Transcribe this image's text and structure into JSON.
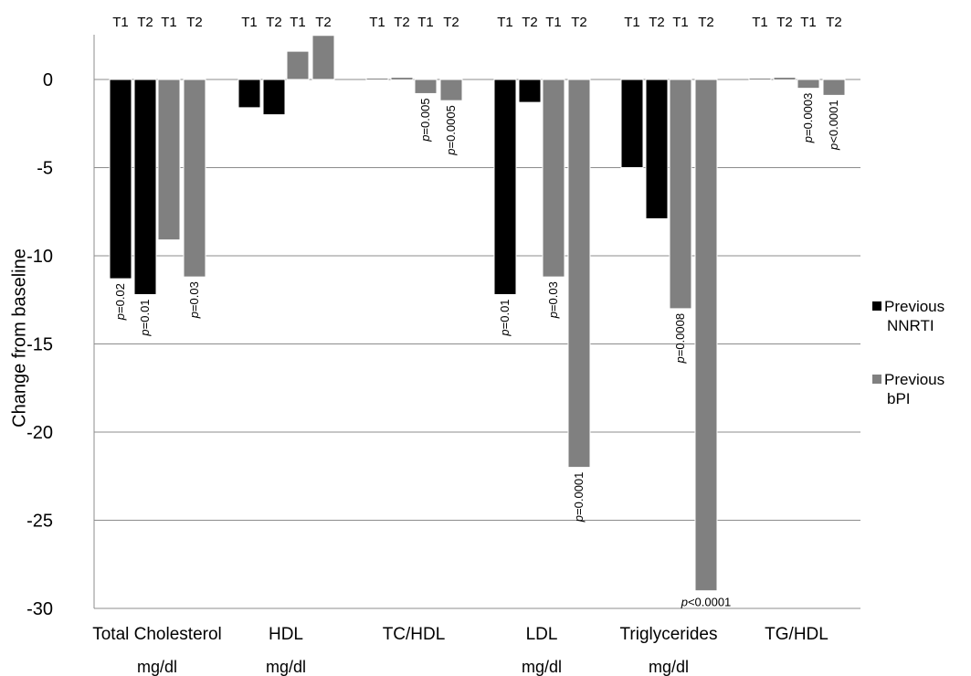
{
  "chart_data": {
    "type": "bar",
    "ylabel": "Change from baseline",
    "ylim": [
      -30,
      2.5
    ],
    "yticks": [
      0,
      -5,
      -10,
      -15,
      -20,
      -25,
      -30
    ],
    "ytick_labels": [
      "0",
      "-5",
      "-10",
      "-15",
      "-20",
      "-25",
      "-30"
    ],
    "grid": true,
    "legend_position": "right",
    "bar_labels": [
      "T1",
      "T2",
      "T1",
      "T2"
    ],
    "categories": [
      {
        "name": "Total Cholesterol",
        "unit": "mg/dl"
      },
      {
        "name": "HDL",
        "unit": "mg/dl"
      },
      {
        "name": "TC/HDL",
        "unit": ""
      },
      {
        "name": "LDL",
        "unit": "mg/dl"
      },
      {
        "name": "Triglycerides",
        "unit": "mg/dl"
      },
      {
        "name": "TG/HDL",
        "unit": ""
      }
    ],
    "series": [
      {
        "name": "Previous NNRTI",
        "legend_lines": [
          "Previous",
          "NNRTI"
        ],
        "color": "#000000",
        "T1": [
          -11.3,
          -1.6,
          0.05,
          -12.2,
          -5.0,
          0.05
        ],
        "T2": [
          -12.2,
          -2.0,
          0.1,
          -1.3,
          -7.9,
          0.1
        ]
      },
      {
        "name": "Previous bPI",
        "legend_lines": [
          "Previous",
          "bPI"
        ],
        "color": "#808080",
        "T1": [
          -9.1,
          1.6,
          -0.8,
          -11.2,
          -13.0,
          -0.5
        ],
        "T2": [
          -11.2,
          2.5,
          -1.2,
          -22.0,
          -29.0,
          -0.9
        ]
      }
    ],
    "annotations": [
      {
        "category": 0,
        "series": 0,
        "time": "T1",
        "text": "0.02"
      },
      {
        "category": 0,
        "series": 0,
        "time": "T2",
        "text": "=0.01"
      },
      {
        "category": 0,
        "series": 1,
        "time": "T2",
        "text": "0.03"
      },
      {
        "category": 2,
        "series": 1,
        "time": "T1",
        "text": "0.005"
      },
      {
        "category": 2,
        "series": 1,
        "time": "T2",
        "text": "0.0005"
      },
      {
        "category": 3,
        "series": 0,
        "time": "T1",
        "text": "0.01"
      },
      {
        "category": 3,
        "series": 1,
        "time": "T1",
        "text": "0.03"
      },
      {
        "category": 3,
        "series": 1,
        "time": "T2",
        "text": "0.0001"
      },
      {
        "category": 4,
        "series": 1,
        "time": "T1",
        "text": "0.0008"
      },
      {
        "category": 4,
        "series": 1,
        "time": "T2",
        "text": "<0.0001"
      },
      {
        "category": 5,
        "series": 1,
        "time": "T1",
        "text": "0.0003"
      },
      {
        "category": 5,
        "series": 1,
        "time": "T2",
        "text": "<0.0001"
      }
    ]
  }
}
